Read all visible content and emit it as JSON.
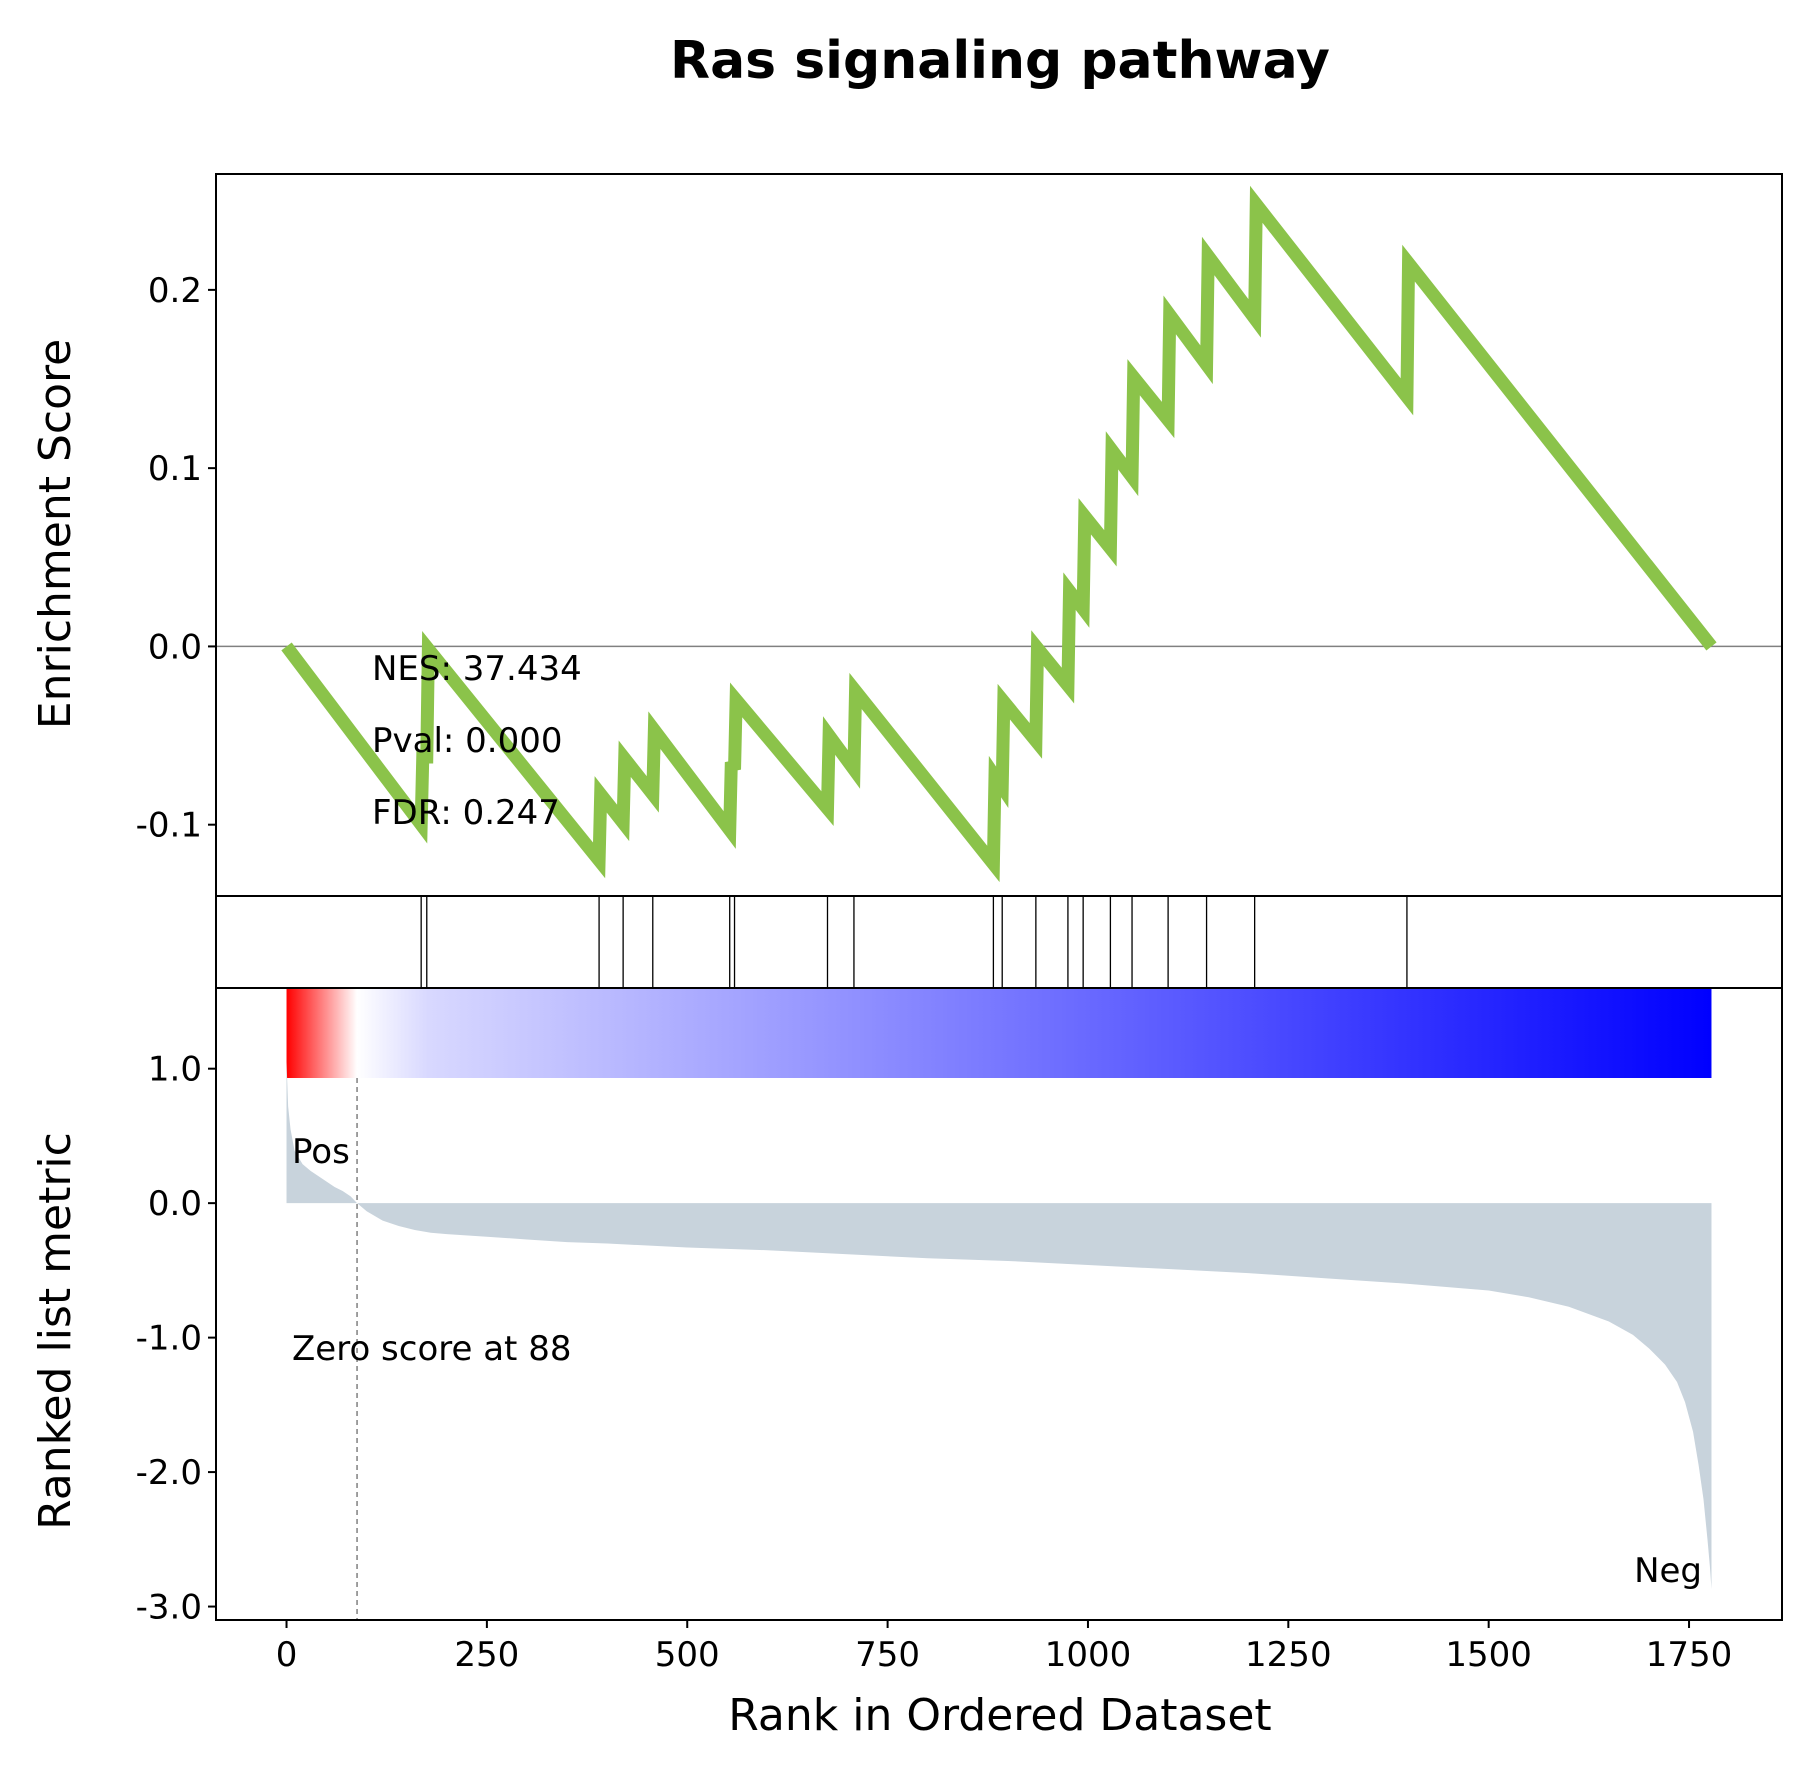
{
  "chart_data": {
    "type": "line",
    "title": "Ras signaling pathway",
    "xlabel": "Rank in Ordered Dataset",
    "xlim": [
      -88,
      1866
    ],
    "x_ticks": [
      {
        "value": 0,
        "label": "0"
      },
      {
        "value": 250,
        "label": "250"
      },
      {
        "value": 500,
        "label": "500"
      },
      {
        "value": 750,
        "label": "750"
      },
      {
        "value": 1000,
        "label": "1000"
      },
      {
        "value": 1250,
        "label": "1250"
      },
      {
        "value": 1500,
        "label": "1500"
      },
      {
        "value": 1750,
        "label": "1750"
      }
    ],
    "enrichment": {
      "ylabel": "Enrichment Score",
      "ylim": [
        -0.14,
        0.265
      ],
      "y_ticks": [
        {
          "value": -0.1,
          "label": "-0.1"
        },
        {
          "value": 0.0,
          "label": "0.0"
        },
        {
          "value": 0.1,
          "label": "0.1"
        },
        {
          "value": 0.2,
          "label": "0.2"
        }
      ],
      "color": "#8bc34a",
      "points": [
        [
          0,
          0.0
        ],
        [
          168,
          -0.1
        ],
        [
          170,
          -0.062
        ],
        [
          175,
          -0.062
        ],
        [
          177,
          -0.0015
        ],
        [
          390,
          -0.12
        ],
        [
          392,
          -0.083
        ],
        [
          420,
          -0.099
        ],
        [
          422,
          -0.063
        ],
        [
          457,
          -0.083
        ],
        [
          459,
          -0.047
        ],
        [
          553,
          -0.103
        ],
        [
          555,
          -0.065
        ],
        [
          559,
          -0.069
        ],
        [
          561,
          -0.03
        ],
        [
          675,
          -0.091
        ],
        [
          677,
          -0.05
        ],
        [
          708,
          -0.069
        ],
        [
          710,
          -0.025
        ],
        [
          882,
          -0.122
        ],
        [
          884,
          -0.073
        ],
        [
          893,
          -0.079
        ],
        [
          895,
          -0.031
        ],
        [
          935,
          -0.053
        ],
        [
          937,
          -0.001
        ],
        [
          975,
          -0.022
        ],
        [
          977,
          0.031
        ],
        [
          994,
          0.021
        ],
        [
          996,
          0.073
        ],
        [
          1028,
          0.055
        ],
        [
          1030,
          0.11
        ],
        [
          1055,
          0.095
        ],
        [
          1057,
          0.151
        ],
        [
          1100,
          0.127
        ],
        [
          1102,
          0.186
        ],
        [
          1148,
          0.158
        ],
        [
          1150,
          0.219
        ],
        [
          1208,
          0.184
        ],
        [
          1210,
          0.248
        ],
        [
          1398,
          0.14
        ],
        [
          1400,
          0.215
        ],
        [
          1778,
          0.0
        ]
      ],
      "zero_line": true,
      "annotations": {
        "nes": "NES: 37.434",
        "pval": "Pval: 0.000",
        "fdr": "FDR: 0.247"
      }
    },
    "hits": [
      168,
      175,
      390,
      420,
      457,
      553,
      559,
      675,
      708,
      882,
      893,
      935,
      975,
      994,
      1028,
      1055,
      1100,
      1148,
      1208,
      1398
    ],
    "ranked_metric": {
      "ylabel": "Ranked list metric",
      "ylim": [
        -3.1,
        1.6
      ],
      "y_ticks": [
        {
          "value": 1.0,
          "label": "1.0"
        },
        {
          "value": 0.0,
          "label": "0.0"
        },
        {
          "value": -1.0,
          "label": "-1.0"
        },
        {
          "value": -2.0,
          "label": "-2.0"
        },
        {
          "value": -3.0,
          "label": "-3.0"
        }
      ],
      "fill_color": "#c8d3dc",
      "curve": [
        [
          0,
          1.05
        ],
        [
          2,
          0.72
        ],
        [
          5,
          0.55
        ],
        [
          10,
          0.39
        ],
        [
          20,
          0.29
        ],
        [
          30,
          0.24
        ],
        [
          40,
          0.2
        ],
        [
          50,
          0.16
        ],
        [
          60,
          0.12
        ],
        [
          70,
          0.09
        ],
        [
          80,
          0.05
        ],
        [
          88,
          0.0
        ],
        [
          100,
          -0.06
        ],
        [
          120,
          -0.13
        ],
        [
          140,
          -0.17
        ],
        [
          160,
          -0.2
        ],
        [
          180,
          -0.22
        ],
        [
          200,
          -0.23
        ],
        [
          250,
          -0.25
        ],
        [
          300,
          -0.27
        ],
        [
          350,
          -0.29
        ],
        [
          400,
          -0.3
        ],
        [
          500,
          -0.33
        ],
        [
          600,
          -0.35
        ],
        [
          700,
          -0.38
        ],
        [
          800,
          -0.41
        ],
        [
          900,
          -0.43
        ],
        [
          1000,
          -0.46
        ],
        [
          1100,
          -0.49
        ],
        [
          1200,
          -0.52
        ],
        [
          1300,
          -0.56
        ],
        [
          1400,
          -0.6
        ],
        [
          1500,
          -0.65
        ],
        [
          1550,
          -0.7
        ],
        [
          1600,
          -0.77
        ],
        [
          1650,
          -0.88
        ],
        [
          1680,
          -0.98
        ],
        [
          1700,
          -1.08
        ],
        [
          1720,
          -1.2
        ],
        [
          1735,
          -1.33
        ],
        [
          1745,
          -1.48
        ],
        [
          1755,
          -1.7
        ],
        [
          1762,
          -1.95
        ],
        [
          1768,
          -2.2
        ],
        [
          1773,
          -2.5
        ],
        [
          1776,
          -2.7
        ],
        [
          1778,
          -2.87
        ]
      ],
      "zero_score_rank": 88,
      "zero_score_label": "Zero score at 88",
      "pos_label": "Pos",
      "pos_color": "#ff0000",
      "neg_label": "Neg",
      "neg_color": "#0000ff"
    },
    "colorbar": {
      "colors": [
        "#ff0000",
        "#ffffff",
        "#d8d8ff",
        "#0000ff"
      ]
    }
  }
}
